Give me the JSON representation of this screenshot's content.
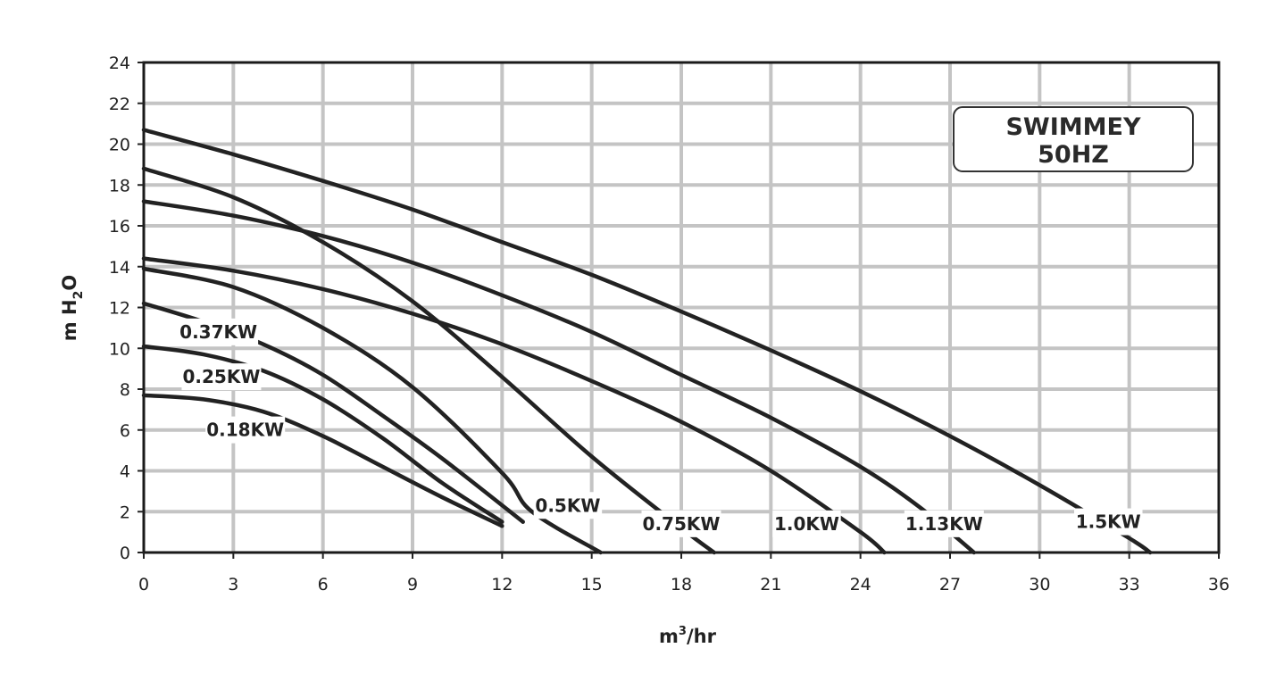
{
  "chart_data": {
    "type": "line",
    "title": "",
    "xlabel": "m3/hr",
    "ylabel": "m H2O",
    "xlabel_parts": {
      "base": "m",
      "sup": "3",
      "rest": "/hr"
    },
    "ylabel_parts": {
      "base": "m H",
      "sub": "2",
      "rest": "O"
    },
    "xlim": [
      0,
      36
    ],
    "ylim": [
      0,
      24
    ],
    "x_ticks": [
      "0",
      "3",
      "6",
      "9",
      "12",
      "15",
      "18",
      "21",
      "24",
      "27",
      "30",
      "33",
      "36"
    ],
    "y_ticks": [
      "0",
      "2",
      "4",
      "6",
      "8",
      "10",
      "12",
      "14",
      "16",
      "18",
      "20",
      "22",
      "24"
    ],
    "grid": true,
    "annotation": {
      "line1": "SWIMMEY",
      "line2": "50HZ"
    },
    "series": [
      {
        "name": "0.18KW",
        "x": [
          0,
          2,
          4,
          6,
          8,
          10,
          12
        ],
        "y": [
          7.7,
          7.5,
          6.9,
          5.7,
          4.2,
          2.7,
          1.3
        ]
      },
      {
        "name": "0.25KW",
        "x": [
          0,
          2,
          4,
          6,
          8,
          10,
          12
        ],
        "y": [
          10.1,
          9.7,
          8.9,
          7.5,
          5.6,
          3.4,
          1.5
        ]
      },
      {
        "name": "0.37KW",
        "x": [
          0,
          2,
          4,
          6,
          8,
          10,
          12.7
        ],
        "y": [
          12.2,
          11.3,
          10.2,
          8.7,
          6.7,
          4.6,
          1.5
        ]
      },
      {
        "name": "0.5KW",
        "x": [
          0,
          3,
          6,
          9,
          12,
          13,
          15.3
        ],
        "y": [
          13.9,
          13.0,
          11.0,
          8.1,
          3.9,
          2.0,
          0
        ]
      },
      {
        "name": "0.75KW",
        "x": [
          0,
          3,
          6,
          9,
          12,
          15,
          18,
          19.1
        ],
        "y": [
          18.8,
          17.4,
          15.2,
          12.3,
          8.6,
          4.7,
          1.2,
          0
        ]
      },
      {
        "name": "1.0KW",
        "x": [
          0,
          3,
          6,
          9,
          12,
          15,
          18,
          21,
          24,
          24.8
        ],
        "y": [
          14.4,
          13.8,
          12.9,
          11.7,
          10.2,
          8.4,
          6.4,
          4.0,
          1.0,
          0
        ]
      },
      {
        "name": "1.13KW",
        "x": [
          0,
          3,
          6,
          9,
          12,
          15,
          18,
          21,
          24,
          26,
          27.8
        ],
        "y": [
          17.2,
          16.5,
          15.5,
          14.2,
          12.6,
          10.8,
          8.7,
          6.6,
          4.2,
          2.2,
          0
        ]
      },
      {
        "name": "1.5KW",
        "x": [
          0,
          3,
          6,
          9,
          12,
          15,
          18,
          21,
          24,
          27,
          30,
          33,
          33.7
        ],
        "y": [
          20.7,
          19.5,
          18.2,
          16.8,
          15.2,
          13.6,
          11.8,
          9.9,
          7.9,
          5.7,
          3.3,
          0.7,
          0
        ]
      }
    ]
  }
}
